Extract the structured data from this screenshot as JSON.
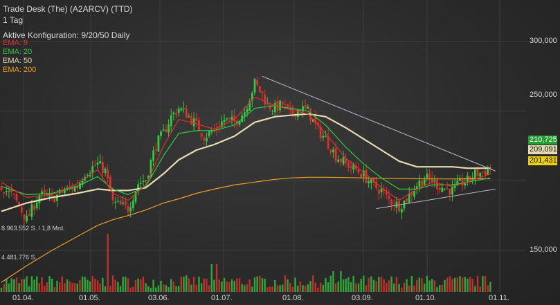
{
  "header": {
    "title": "Trade Desk (The) (A2ARCV) (TTD)",
    "timeframe": "1 Tag",
    "config": "Aktive Konfiguration: 9/20/50 Daily"
  },
  "legend": [
    {
      "label": "EMA: 9",
      "color": "#e03030"
    },
    {
      "label": "EMA: 20",
      "color": "#2ecc40"
    },
    {
      "label": "EMA: 50",
      "color": "#e6dcb0"
    },
    {
      "label": "EMA: 200",
      "color": "#f0a020"
    }
  ],
  "volume_labels": {
    "upper": "8.963.552 S. / 1,8 Mrd.",
    "lower": "4.481.776 S."
  },
  "price_tags": [
    {
      "label": "210,725",
      "value": 210.725,
      "bg": "#1f9f2f",
      "fg": "#ffffff"
    },
    {
      "label": "209,091",
      "value": 209.091,
      "bg": "#e6dcb0",
      "fg": "#111111"
    },
    {
      "label": "201,431",
      "value": 201.431,
      "bg": "#f0d000",
      "fg": "#111111"
    }
  ],
  "chart_data": {
    "type": "candlestick",
    "title": "Trade Desk (The) (A2ARCV) (TTD)",
    "y_ticks": [
      "300,000",
      "250,000",
      "150,000"
    ],
    "y_tick_values": [
      300,
      250,
      150
    ],
    "x_ticks": [
      "01.04.",
      "01.05.",
      "03.06.",
      "01.07.",
      "01.08.",
      "03.09.",
      "01.10.",
      "01.11."
    ],
    "ylim": [
      128,
      316
    ],
    "close_path": [
      [
        0,
        196
      ],
      [
        5,
        188
      ],
      [
        10,
        172
      ],
      [
        15,
        190
      ],
      [
        20,
        187
      ],
      [
        25,
        193
      ],
      [
        30,
        196
      ],
      [
        33,
        206
      ],
      [
        38,
        212
      ],
      [
        41,
        207
      ],
      [
        44,
        184
      ],
      [
        47,
        182
      ],
      [
        50,
        180
      ],
      [
        54,
        198
      ],
      [
        57,
        201
      ],
      [
        61,
        226
      ],
      [
        64,
        234
      ],
      [
        67,
        246
      ],
      [
        70,
        252
      ],
      [
        73,
        248
      ],
      [
        77,
        240
      ],
      [
        80,
        232
      ],
      [
        84,
        236
      ],
      [
        88,
        244
      ],
      [
        92,
        242
      ],
      [
        96,
        250
      ],
      [
        100,
        270
      ],
      [
        103,
        262
      ],
      [
        105,
        254
      ],
      [
        108,
        252
      ],
      [
        111,
        255
      ],
      [
        114,
        248
      ],
      [
        118,
        252
      ],
      [
        121,
        250
      ],
      [
        125,
        236
      ],
      [
        128,
        230
      ],
      [
        132,
        218
      ],
      [
        136,
        212
      ],
      [
        140,
        208
      ],
      [
        143,
        204
      ],
      [
        147,
        196
      ],
      [
        150,
        193
      ],
      [
        153,
        186
      ],
      [
        157,
        182
      ],
      [
        159,
        185
      ],
      [
        162,
        192
      ],
      [
        164,
        197
      ],
      [
        167,
        202
      ],
      [
        170,
        200
      ],
      [
        173,
        196
      ],
      [
        176,
        194
      ],
      [
        178,
        193
      ],
      [
        181,
        198
      ],
      [
        184,
        200
      ],
      [
        187,
        205
      ],
      [
        190,
        206
      ],
      [
        193,
        209
      ]
    ],
    "ema_9": [
      [
        0,
        199
      ],
      [
        10,
        188
      ],
      [
        20,
        190
      ],
      [
        30,
        198
      ],
      [
        38,
        208
      ],
      [
        44,
        191
      ],
      [
        50,
        186
      ],
      [
        57,
        197
      ],
      [
        64,
        225
      ],
      [
        70,
        244
      ],
      [
        77,
        241
      ],
      [
        84,
        237
      ],
      [
        92,
        244
      ],
      [
        100,
        260
      ],
      [
        108,
        254
      ],
      [
        114,
        251
      ],
      [
        121,
        248
      ],
      [
        128,
        234
      ],
      [
        136,
        216
      ],
      [
        143,
        206
      ],
      [
        150,
        195
      ],
      [
        157,
        186
      ],
      [
        164,
        194
      ],
      [
        170,
        199
      ],
      [
        178,
        196
      ],
      [
        184,
        199
      ],
      [
        193,
        205
      ]
    ],
    "ema_20": [
      [
        0,
        196
      ],
      [
        10,
        190
      ],
      [
        20,
        191
      ],
      [
        30,
        196
      ],
      [
        38,
        203
      ],
      [
        44,
        194
      ],
      [
        50,
        190
      ],
      [
        57,
        196
      ],
      [
        64,
        218
      ],
      [
        70,
        234
      ],
      [
        77,
        236
      ],
      [
        84,
        236
      ],
      [
        92,
        240
      ],
      [
        100,
        252
      ],
      [
        108,
        254
      ],
      [
        114,
        252
      ],
      [
        121,
        250
      ],
      [
        128,
        240
      ],
      [
        136,
        224
      ],
      [
        143,
        212
      ],
      [
        150,
        202
      ],
      [
        157,
        194
      ],
      [
        164,
        194
      ],
      [
        170,
        197
      ],
      [
        178,
        197
      ],
      [
        184,
        199
      ],
      [
        193,
        202
      ]
    ],
    "ema_50": [
      [
        0,
        178
      ],
      [
        10,
        184
      ],
      [
        20,
        188
      ],
      [
        30,
        191
      ],
      [
        38,
        194
      ],
      [
        44,
        193
      ],
      [
        50,
        193
      ],
      [
        57,
        195
      ],
      [
        64,
        205
      ],
      [
        70,
        215
      ],
      [
        77,
        222
      ],
      [
        84,
        226
      ],
      [
        92,
        232
      ],
      [
        100,
        242
      ],
      [
        108,
        246
      ],
      [
        114,
        247
      ],
      [
        121,
        248
      ],
      [
        128,
        246
      ],
      [
        136,
        238
      ],
      [
        143,
        230
      ],
      [
        150,
        222
      ],
      [
        157,
        214
      ],
      [
        164,
        210
      ],
      [
        170,
        210
      ],
      [
        178,
        210
      ],
      [
        184,
        209
      ],
      [
        193,
        209
      ]
    ],
    "ema_200": [
      [
        0,
        127
      ],
      [
        10,
        139
      ],
      [
        20,
        150
      ],
      [
        30,
        160
      ],
      [
        38,
        168
      ],
      [
        44,
        172
      ],
      [
        50,
        175
      ],
      [
        57,
        179
      ],
      [
        64,
        184
      ],
      [
        70,
        187
      ],
      [
        77,
        191
      ],
      [
        84,
        194
      ],
      [
        92,
        197
      ],
      [
        100,
        199
      ],
      [
        108,
        201
      ],
      [
        114,
        202
      ],
      [
        121,
        202.5
      ],
      [
        128,
        202.5
      ],
      [
        136,
        202.3
      ],
      [
        143,
        202
      ],
      [
        150,
        201.8
      ],
      [
        157,
        201.5
      ],
      [
        164,
        201.4
      ],
      [
        170,
        201.3
      ],
      [
        178,
        201.3
      ],
      [
        184,
        201.4
      ],
      [
        193,
        201.4
      ]
    ],
    "trendlines": [
      {
        "from": [
          103,
          275
        ],
        "to": [
          195,
          207
        ]
      },
      {
        "from": [
          148,
          180
        ],
        "to": [
          195,
          194
        ]
      }
    ],
    "last_close": 210.725
  }
}
